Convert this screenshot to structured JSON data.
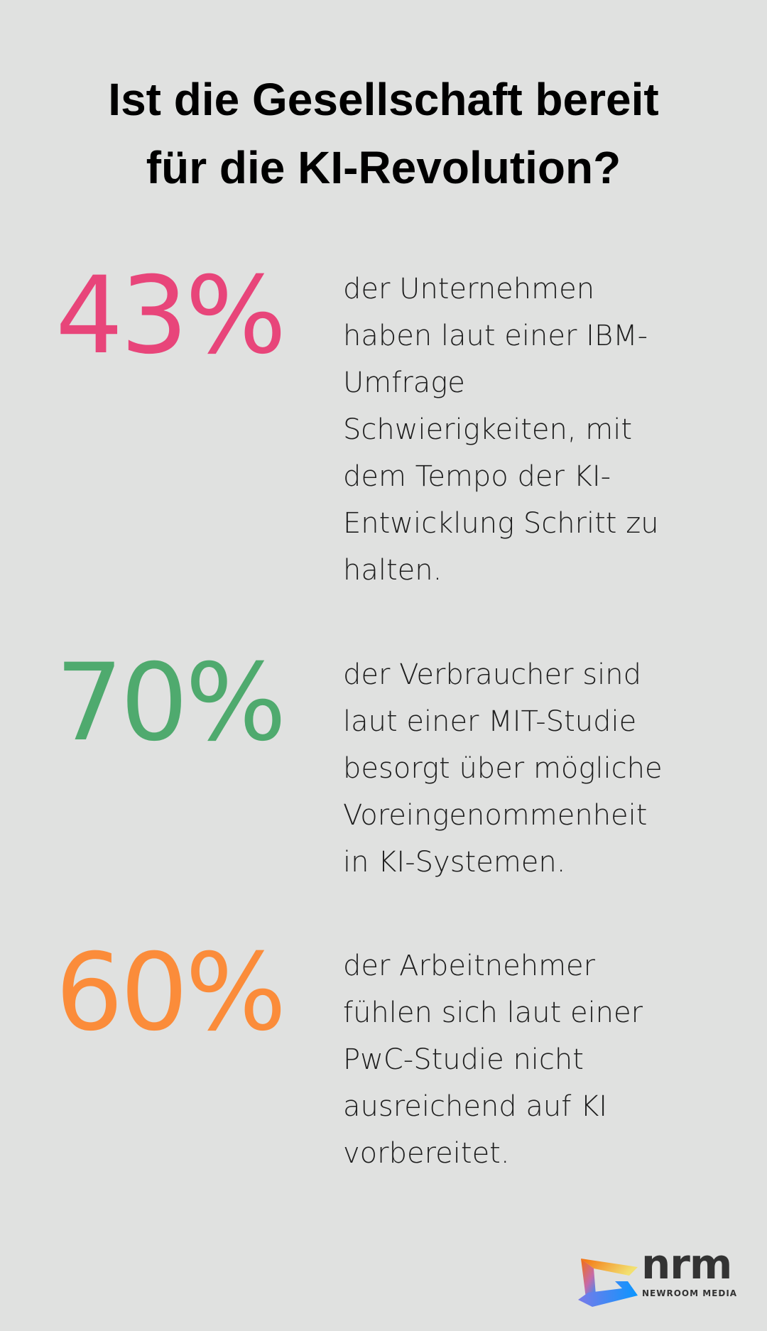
{
  "title": {
    "lines": [
      "Ist die Gesellschaft bereit",
      "für die KI-Revolution?"
    ]
  },
  "stats": [
    {
      "value": "43%",
      "color": "#e8457a",
      "lines": [
        "der Unternehmen",
        "haben laut einer IBM-",
        "Umfrage",
        "Schwierigkeiten, mit",
        "dem Tempo der KI-",
        "Entwicklung Schritt zu",
        "halten."
      ]
    },
    {
      "value": "70%",
      "color": "#4faa6e",
      "lines": [
        "der Verbraucher sind",
        "laut einer MIT-Studie",
        "besorgt über mögliche",
        "Voreingenommenheit",
        "in KI-Systemen."
      ]
    },
    {
      "value": "60%",
      "color": "#fb8c3a",
      "lines": [
        "der Arbeitnehmer",
        "fühlen sich laut einer",
        "PwC-Studie nicht",
        "ausreichend auf KI",
        "vorbereitet."
      ]
    }
  ],
  "logo": {
    "wordmark": "nrm",
    "subtitle": "NEWROOM MEDIA"
  },
  "colors": {
    "background": "#e0e1e0"
  }
}
